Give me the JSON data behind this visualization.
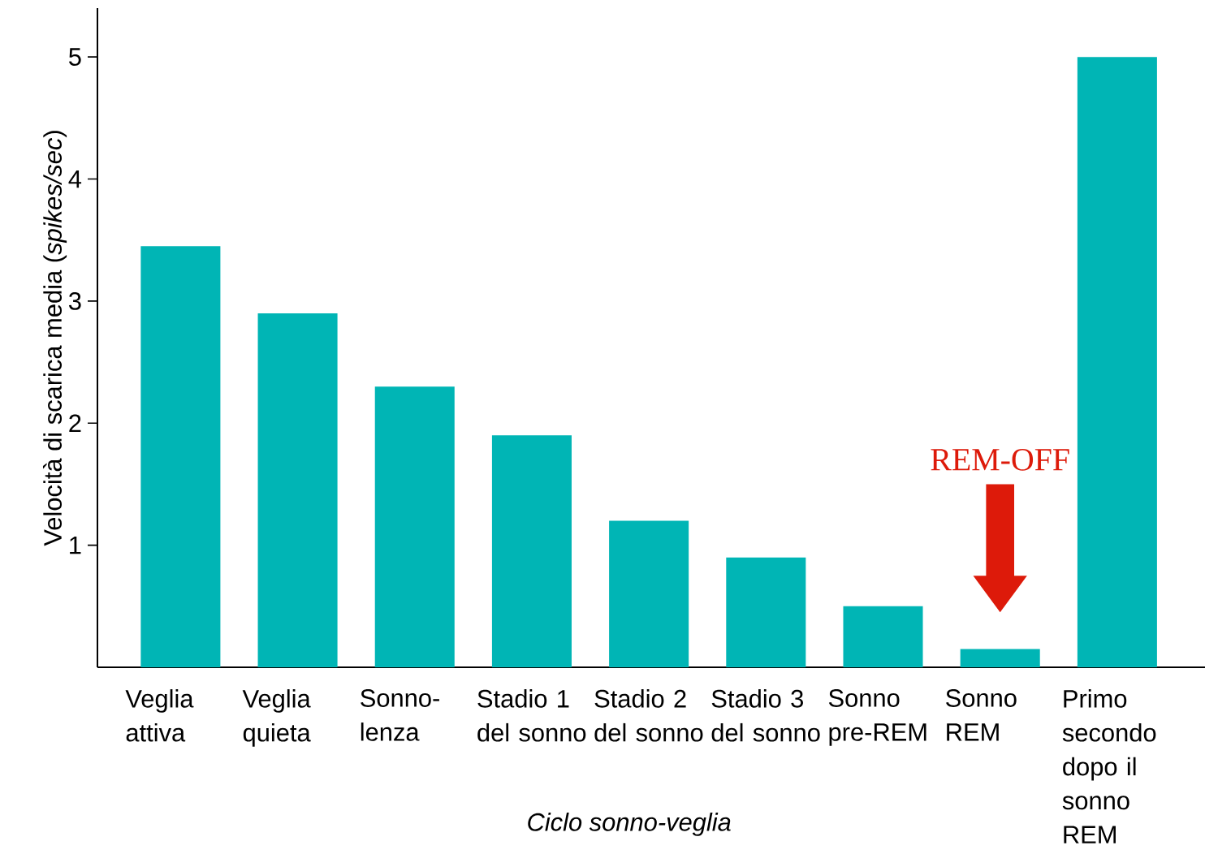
{
  "chart_data": {
    "type": "bar",
    "xlabel": "Ciclo sonno-veglia",
    "ylabel": "Velocità di scarica media (*spikes/sec*)",
    "categories": [
      "Veglia attiva",
      "Veglia quieta",
      "Sonno-lenza",
      "Stadio 1 del sonno",
      "Stadio 2 del sonno",
      "Stadio 3 del sonno",
      "Sonno pre-REM",
      "Sonno REM",
      "Primo secondo dopo il sonno REM"
    ],
    "values": [
      3.45,
      2.9,
      2.3,
      1.9,
      1.2,
      0.9,
      0.5,
      0.15,
      5.0
    ],
    "color": "#00b5b5",
    "ylim": [
      0,
      5.4
    ],
    "yticks": [
      1,
      2,
      3,
      4,
      5
    ],
    "annotations": [
      "REM-OFF"
    ]
  }
}
